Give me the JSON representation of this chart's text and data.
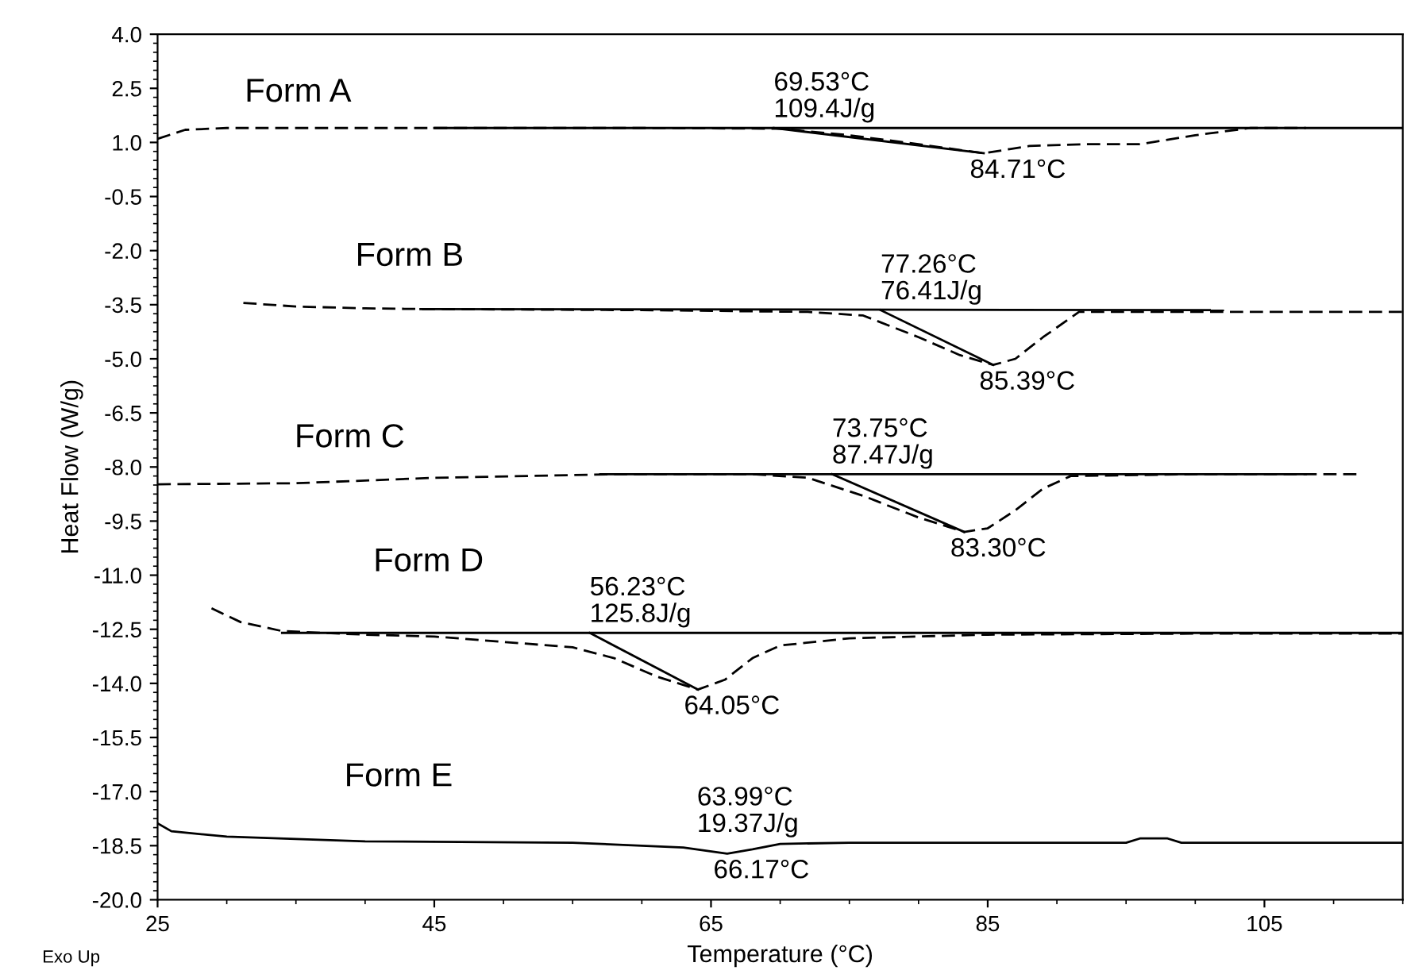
{
  "chart_data": {
    "type": "line",
    "xlabel": "Temperature (°C)",
    "ylabel": "Heat Flow (W/g)",
    "xlim": [
      25,
      115
    ],
    "xticks": [
      25,
      45,
      65,
      85,
      105
    ],
    "ylim": [
      -20,
      4
    ],
    "yticks": [
      {
        "value": 4,
        "label": "4.0"
      },
      {
        "value": 2.5,
        "label": "2.5"
      },
      {
        "value": 1,
        "label": "1.0"
      },
      {
        "value": -0.5,
        "label": "-0.5"
      },
      {
        "value": -2,
        "label": "-2.0"
      },
      {
        "value": -3.5,
        "label": "-3.5"
      },
      {
        "value": -5,
        "label": "-5.0"
      },
      {
        "value": -6.5,
        "label": "-6.5"
      },
      {
        "value": -8,
        "label": "-8.0"
      },
      {
        "value": -9.5,
        "label": "-9.5"
      },
      {
        "value": -11,
        "label": "-11.0"
      },
      {
        "value": -12.5,
        "label": "-12.5"
      },
      {
        "value": -14,
        "label": "-14.0"
      },
      {
        "value": -15.5,
        "label": "-15.5"
      },
      {
        "value": -17,
        "label": "-17.0"
      },
      {
        "value": -18.5,
        "label": "-18.5"
      },
      {
        "value": -20,
        "label": "-20.0"
      }
    ],
    "grid": false,
    "legend": false,
    "series": [
      {
        "name": "Form A",
        "color": "#000000",
        "line_style": "dashed",
        "x": [
          25,
          27,
          30,
          45,
          60,
          70,
          75,
          80,
          84.7,
          88,
          92,
          96,
          100,
          104,
          108
        ],
        "values": [
          1.1,
          1.35,
          1.4,
          1.4,
          1.4,
          1.38,
          1.2,
          0.95,
          0.7,
          0.9,
          0.95,
          0.95,
          1.2,
          1.4,
          1.4
        ]
      },
      {
        "name": "Form B",
        "color": "#000000",
        "line_style": "dashed",
        "x": [
          31.2,
          35,
          40,
          44,
          60,
          72,
          76,
          80,
          83,
          85.4,
          87,
          89,
          91.6,
          100,
          115
        ],
        "values": [
          -3.45,
          -3.55,
          -3.6,
          -3.62,
          -3.65,
          -3.7,
          -3.8,
          -4.4,
          -4.9,
          -5.17,
          -5.0,
          -4.4,
          -3.7,
          -3.7,
          -3.7
        ]
      },
      {
        "name": "Form C",
        "color": "#000000",
        "line_style": "dashed",
        "x": [
          25,
          35,
          45,
          58,
          68,
          72,
          76,
          80,
          83.3,
          85,
          87,
          89,
          91,
          100,
          112
        ],
        "values": [
          -8.48,
          -8.45,
          -8.3,
          -8.2,
          -8.2,
          -8.3,
          -8.8,
          -9.4,
          -9.8,
          -9.7,
          -9.2,
          -8.6,
          -8.25,
          -8.2,
          -8.2
        ]
      },
      {
        "name": "Form D",
        "color": "#000000",
        "line_style": "dashed",
        "x": [
          28.9,
          31,
          34,
          40,
          45,
          50,
          55,
          58,
          61,
          64.05,
          66,
          68,
          70,
          75,
          85,
          100,
          115
        ],
        "values": [
          -11.92,
          -12.3,
          -12.55,
          -12.65,
          -12.7,
          -12.85,
          -13.0,
          -13.3,
          -13.8,
          -14.17,
          -13.9,
          -13.3,
          -12.95,
          -12.75,
          -12.65,
          -12.62,
          -12.62
        ]
      },
      {
        "name": "Form E",
        "color": "#000000",
        "line_style": "solid",
        "x": [
          25,
          26,
          30,
          40,
          55,
          63,
          66.17,
          68,
          70,
          75,
          95,
          96,
          98,
          99,
          115
        ],
        "values": [
          -17.88,
          -18.1,
          -18.25,
          -18.38,
          -18.42,
          -18.55,
          -18.72,
          -18.6,
          -18.45,
          -18.42,
          -18.42,
          -18.3,
          -18.3,
          -18.42,
          -18.42
        ]
      },
      {
        "color": "#000000",
        "line_style": "solid",
        "x": [
          45,
          115
        ],
        "values": [
          1.4,
          1.4
        ]
      },
      {
        "color": "#000000",
        "line_style": "solid",
        "x": [
          69.53,
          84.71
        ],
        "values": [
          1.4,
          0.7
        ]
      },
      {
        "color": "#000000",
        "line_style": "solid",
        "x": [
          44,
          102
        ],
        "values": [
          -3.62,
          -3.65
        ]
      },
      {
        "color": "#000000",
        "line_style": "solid",
        "x": [
          77.26,
          85.39
        ],
        "values": [
          -3.65,
          -5.17
        ]
      },
      {
        "color": "#000000",
        "line_style": "solid",
        "x": [
          57,
          108
        ],
        "values": [
          -8.2,
          -8.2
        ]
      },
      {
        "color": "#000000",
        "line_style": "solid",
        "x": [
          73.75,
          83.3
        ],
        "values": [
          -8.2,
          -9.8
        ]
      },
      {
        "color": "#000000",
        "line_style": "solid",
        "x": [
          34,
          115
        ],
        "values": [
          -12.6,
          -12.6
        ]
      },
      {
        "color": "#000000",
        "line_style": "solid",
        "x": [
          56.23,
          64.05
        ],
        "values": [
          -12.6,
          -14.17
        ]
      }
    ],
    "annotations": [
      {
        "text": "69.53°C\n109.4J/g",
        "x": 69.53,
        "y": 1.4
      },
      {
        "text": "84.71°C",
        "x": 84.71,
        "y": 0.7
      },
      {
        "text": "77.26°C\n76.41J/g",
        "x": 77.26,
        "y": -3.65
      },
      {
        "text": "85.39°C",
        "x": 85.39,
        "y": -5.17
      },
      {
        "text": "73.75°C\n87.47J/g",
        "x": 73.75,
        "y": -8.2
      },
      {
        "text": "83.30°C",
        "x": 83.3,
        "y": -9.8
      },
      {
        "text": "56.23°C\n125.8J/g",
        "x": 56.23,
        "y": -12.6
      },
      {
        "text": "64.05°C",
        "x": 64.05,
        "y": -14.17
      },
      {
        "text": "63.99°C\n19.37J/g",
        "x": 63.99,
        "y": -18.42
      },
      {
        "text": "66.17°C",
        "x": 66.17,
        "y": -18.72
      },
      "Exo Up"
    ]
  }
}
